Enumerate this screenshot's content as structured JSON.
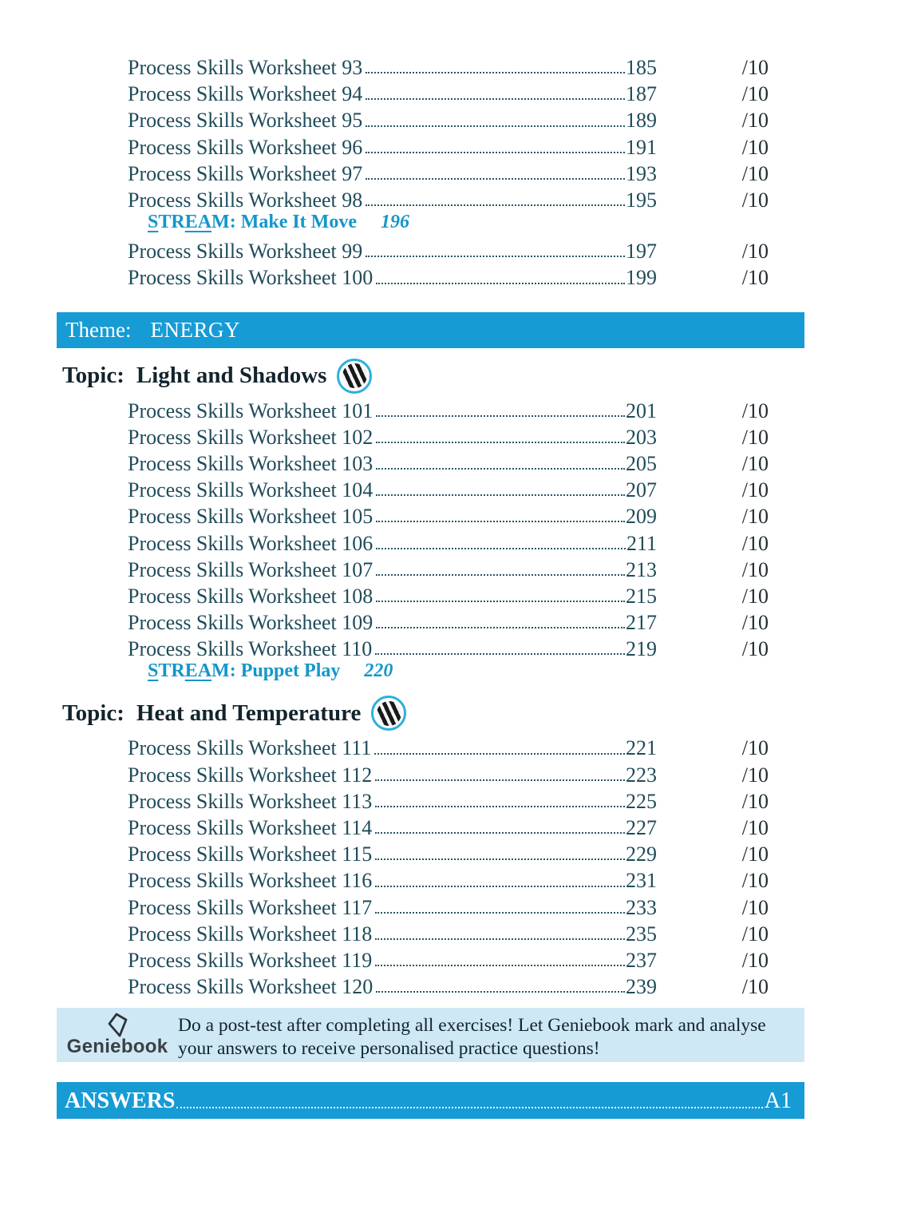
{
  "colors": {
    "banner_blue": "#169bd5",
    "promo_light_blue": "#cfe8f6",
    "entry_text": "#1f4b59",
    "stream_blue": "#1496cb",
    "topic_text": "#13242c",
    "icon_ring_cyan": "#2db0dc"
  },
  "sections": [
    {
      "kind": "rows",
      "rows": [
        {
          "title": "Process Skills Worksheet 93",
          "page": "185",
          "score": "/10"
        },
        {
          "title": "Process Skills Worksheet 94",
          "page": "187",
          "score": "/10"
        },
        {
          "title": "Process Skills Worksheet 95",
          "page": "189",
          "score": "/10"
        },
        {
          "title": "Process Skills Worksheet 96",
          "page": "191",
          "score": "/10"
        },
        {
          "title": "Process Skills Worksheet 97",
          "page": "193",
          "score": "/10"
        },
        {
          "title": "Process Skills Worksheet 98",
          "page": "195",
          "score": "/10"
        }
      ]
    },
    {
      "kind": "stream",
      "page": "196",
      "segments": [
        {
          "text": "S",
          "underline": true
        },
        {
          "text": "TR",
          "underline": false
        },
        {
          "text": "EA",
          "underline": true
        },
        {
          "text": "M: Make It Move",
          "underline": false
        }
      ]
    },
    {
      "kind": "rows",
      "rows": [
        {
          "title": "Process Skills Worksheet 99",
          "page": "197",
          "score": "/10"
        },
        {
          "title": "Process Skills Worksheet 100",
          "page": "199",
          "score": "/10"
        }
      ]
    },
    {
      "kind": "theme",
      "label": "Theme:",
      "name": "ENERGY"
    },
    {
      "kind": "topic",
      "label": "Topic:",
      "name": "Light and Shadows",
      "icon": "striped-globe-icon"
    },
    {
      "kind": "rows",
      "rows": [
        {
          "title": "Process Skills Worksheet 101",
          "page": "201",
          "score": "/10"
        },
        {
          "title": "Process Skills Worksheet 102",
          "page": "203",
          "score": "/10"
        },
        {
          "title": "Process Skills Worksheet 103",
          "page": "205",
          "score": "/10"
        },
        {
          "title": "Process Skills Worksheet 104",
          "page": "207",
          "score": "/10"
        },
        {
          "title": "Process Skills Worksheet 105",
          "page": "209",
          "score": "/10"
        },
        {
          "title": "Process Skills Worksheet 106",
          "page": "211",
          "score": "/10"
        },
        {
          "title": "Process Skills Worksheet 107",
          "page": "213",
          "score": "/10"
        },
        {
          "title": "Process Skills Worksheet 108",
          "page": "215",
          "score": "/10"
        },
        {
          "title": "Process Skills Worksheet 109",
          "page": "217",
          "score": "/10"
        },
        {
          "title": "Process Skills Worksheet 110",
          "page": "219",
          "score": "/10"
        }
      ]
    },
    {
      "kind": "stream",
      "page": "220",
      "segments": [
        {
          "text": "S",
          "underline": true
        },
        {
          "text": "TR",
          "underline": false
        },
        {
          "text": "EA",
          "underline": true
        },
        {
          "text": "M: Puppet Play",
          "underline": false
        }
      ]
    },
    {
      "kind": "topic",
      "label": "Topic:",
      "name": "Heat and Temperature",
      "icon": "striped-globe-icon"
    },
    {
      "kind": "rows",
      "rows": [
        {
          "title": "Process Skills Worksheet 111",
          "page": "221",
          "score": "/10"
        },
        {
          "title": "Process Skills Worksheet 112",
          "page": "223",
          "score": "/10"
        },
        {
          "title": "Process Skills Worksheet 113",
          "page": "225",
          "score": "/10"
        },
        {
          "title": "Process Skills Worksheet 114",
          "page": "227",
          "score": "/10"
        },
        {
          "title": "Process Skills Worksheet 115",
          "page": "229",
          "score": "/10"
        },
        {
          "title": "Process Skills Worksheet 116",
          "page": "231",
          "score": "/10"
        },
        {
          "title": "Process Skills Worksheet 117",
          "page": "233",
          "score": "/10"
        },
        {
          "title": "Process Skills Worksheet 118",
          "page": "235",
          "score": "/10"
        },
        {
          "title": "Process Skills Worksheet 119",
          "page": "237",
          "score": "/10"
        },
        {
          "title": "Process Skills Worksheet 120",
          "page": "239",
          "score": "/10"
        }
      ]
    },
    {
      "kind": "promo",
      "brand": "Geniebook",
      "lines": [
        "Do a post-test after completing all exercises! Let Geniebook mark and analyse",
        "your answers to receive personalised practice questions!"
      ]
    },
    {
      "kind": "answers",
      "label": "ANSWERS",
      "page": "A1"
    }
  ]
}
